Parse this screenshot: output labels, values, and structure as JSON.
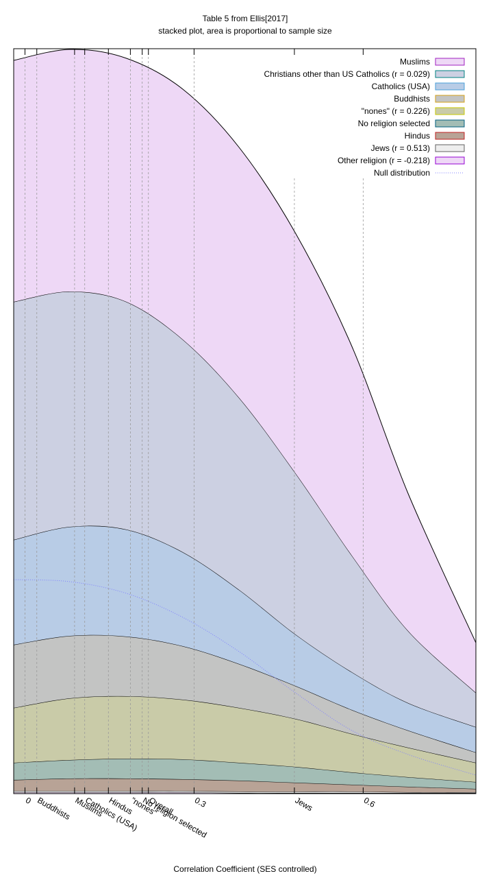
{
  "chart_data": {
    "type": "stacked_area",
    "title": "Table 5 from Ellis[2017]",
    "subtitle": "stacked plot, area is proportional to sample size",
    "x_label": "Correlation Coefficient (SES controlled)",
    "x": [
      -0.02,
      0.08,
      0.18,
      0.28,
      0.38,
      0.48,
      0.58,
      0.68,
      0.8
    ],
    "xlim": [
      -0.02,
      0.8
    ],
    "xticks": [
      0,
      0.3,
      0.6
    ],
    "ylim": [
      0,
      108.6
    ],
    "legend": "top-right",
    "series": [
      {
        "name": "Muslims",
        "color": "#eed8f6",
        "edge": "#a020c0",
        "values": [
          35.2,
          35.3,
          35.5,
          36.5,
          36.5,
          35.0,
          30.5,
          20.0,
          7.3
        ]
      },
      {
        "name": "Christians other than US Catholics (r = 0.029)",
        "color": "#ccd0e2",
        "edge": "#008080",
        "values": [
          34.7,
          34.3,
          33.2,
          31.0,
          28.0,
          23.5,
          17.0,
          10.5,
          5.0
        ]
      },
      {
        "name": "Catholics (USA)",
        "color": "#b8cce6",
        "edge": "#4a9fd8",
        "values": [
          15.3,
          15.9,
          15.6,
          13.7,
          10.8,
          7.5,
          5.5,
          4.0,
          3.7
        ]
      },
      {
        "name": "Buddhists",
        "color": "#c3c4c3",
        "edge": "#d4a017",
        "values": [
          9.2,
          9.1,
          8.7,
          7.8,
          6.4,
          4.8,
          3.5,
          2.5,
          1.5
        ]
      },
      {
        "name": "\"nones\" (r = 0.226)",
        "color": "#c9cba8",
        "edge": "#c8c800",
        "values": [
          8.0,
          9.0,
          9.1,
          8.7,
          8.0,
          7.0,
          5.6,
          4.3,
          2.8
        ]
      },
      {
        "name": "No religion selected",
        "color": "#a3bdb5",
        "edge": "#005f7f",
        "values": [
          2.5,
          2.7,
          2.9,
          2.9,
          2.6,
          2.3,
          1.8,
          1.4,
          1.0
        ]
      },
      {
        "name": "Hindus",
        "color": "#b8a396",
        "edge": "#c02020",
        "values": [
          1.6,
          1.8,
          1.8,
          1.7,
          1.6,
          1.3,
          1.0,
          0.8,
          0.5
        ]
      },
      {
        "name": "Jews (r = 0.513)",
        "color": "#eeeeee",
        "edge": "#606060",
        "values": [
          0.2,
          0.2,
          0.2,
          0.2,
          0.2,
          0.2,
          0.2,
          0.1,
          0.1
        ]
      },
      {
        "name": "Other religion (r = -0.218)",
        "color": "#eed8f6",
        "edge": "#9400d3",
        "values": [
          0.2,
          0.2,
          0.2,
          0.2,
          0.1,
          0.1,
          0.1,
          0.1,
          0.1
        ]
      }
    ],
    "reference_line": {
      "name": "Null distribution",
      "color": "#8080ff",
      "values": [
        31.2,
        30.9,
        29.2,
        25.7,
        20.7,
        14.7,
        9.2,
        5.7,
        2.7
      ]
    },
    "markers": [
      {
        "label": "Buddhists",
        "value": 0.021
      },
      {
        "label": "Muslims",
        "value": 0.088
      },
      {
        "label": "Catholics (USA)",
        "value": 0.106
      },
      {
        "label": "Hindus",
        "value": 0.148
      },
      {
        "label": "\"nones\"",
        "value": 0.187
      },
      {
        "label": "No religion selected",
        "value": 0.208
      },
      {
        "label": "Overall",
        "value": 0.219
      },
      {
        "label": "Jews",
        "value": 0.478
      }
    ]
  }
}
